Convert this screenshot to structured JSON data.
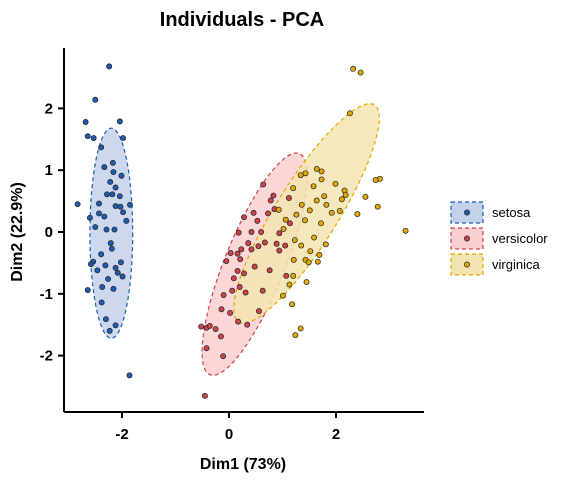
{
  "chart_data": {
    "type": "scatter",
    "title": "Individuals - PCA",
    "xlabel": "Dim1 (73%)",
    "ylabel": "Dim2 (22.9%)",
    "xlim": [
      -3.1,
      3.7
    ],
    "ylim": [
      -2.9,
      2.95
    ],
    "xticks": [
      -2,
      0,
      2
    ],
    "yticks": [
      -2,
      -1,
      0,
      1,
      2
    ],
    "grid": false,
    "legend_position": "right",
    "series": [
      {
        "name": "setosa",
        "color": "#1f5bb0",
        "fill": "#c3d1ea",
        "ellipse": {
          "center": [
            -2.2,
            -0.02
          ],
          "rx": 0.4,
          "ry": 1.7,
          "angle": 0
        },
        "points": [
          [
            -2.24,
            2.68
          ],
          [
            -2.5,
            2.14
          ],
          [
            -2.68,
            1.78
          ],
          [
            -2.64,
            1.55
          ],
          [
            -2.53,
            1.52
          ],
          [
            -2.39,
            1.37
          ],
          [
            -2.04,
            1.79
          ],
          [
            -2.33,
            1.05
          ],
          [
            -2.17,
            1.12
          ],
          [
            -2.16,
            0.97
          ],
          [
            -2.22,
            0.81
          ],
          [
            -1.98,
            1.52
          ],
          [
            -2.12,
            0.72
          ],
          [
            -2.28,
            0.61
          ],
          [
            -2.43,
            0.46
          ],
          [
            -2.43,
            0.3
          ],
          [
            -2.18,
            0.61
          ],
          [
            -2.01,
            0.91
          ],
          [
            -2.04,
            0.58
          ],
          [
            -2.12,
            0.42
          ],
          [
            -2.33,
            0.25
          ],
          [
            -2.5,
            0.08
          ],
          [
            -2.6,
            0.23
          ],
          [
            -2.83,
            0.45
          ],
          [
            -2.29,
            0.04
          ],
          [
            -2.03,
            0.41
          ],
          [
            -1.98,
            0.32
          ],
          [
            -1.85,
            0.44
          ],
          [
            -1.92,
            0.18
          ],
          [
            -2.14,
            0.04
          ],
          [
            -2.21,
            -0.18
          ],
          [
            -2.19,
            -0.27
          ],
          [
            -2.39,
            -0.36
          ],
          [
            -2.54,
            -0.48
          ],
          [
            -2.46,
            -0.62
          ],
          [
            -2.31,
            -0.54
          ],
          [
            -2.12,
            -0.58
          ],
          [
            -2.02,
            -0.49
          ],
          [
            -1.99,
            -0.72
          ],
          [
            -2.08,
            -0.66
          ],
          [
            -2.26,
            -0.76
          ],
          [
            -2.37,
            -0.89
          ],
          [
            -2.58,
            -0.52
          ],
          [
            -2.64,
            -0.94
          ],
          [
            -2.38,
            -1.14
          ],
          [
            -2.16,
            -0.92
          ],
          [
            -2.3,
            -1.41
          ],
          [
            -2.23,
            -1.6
          ],
          [
            -2.12,
            -1.51
          ],
          [
            -1.86,
            -2.32
          ]
        ]
      },
      {
        "name": "versicolor",
        "color": "#c9444b",
        "fill": "#f9cfcf",
        "ellipse": {
          "center": [
            0.48,
            -0.52
          ],
          "rx": 0.56,
          "ry": 1.93,
          "angle": 22
        },
        "points": [
          [
            0.83,
            0.59
          ],
          [
            0.85,
            0.37
          ],
          [
            0.64,
            0.77
          ],
          [
            0.78,
            0.51
          ],
          [
            0.46,
            0.31
          ],
          [
            0.28,
            0.24
          ],
          [
            0.53,
            0.18
          ],
          [
            0.6,
            0.0
          ],
          [
            0.36,
            -0.18
          ],
          [
            0.18,
            -0.01
          ],
          [
            0.21,
            -0.44
          ],
          [
            0.42,
            -0.28
          ],
          [
            0.67,
            -0.17
          ],
          [
            0.48,
            -0.56
          ],
          [
            0.28,
            -0.67
          ],
          [
            0.16,
            -0.35
          ],
          [
            0.16,
            -0.63
          ],
          [
            0.23,
            -0.28
          ],
          [
            0.03,
            -0.34
          ],
          [
            -0.05,
            -0.47
          ],
          [
            -0.1,
            -1.02
          ],
          [
            0.06,
            -0.95
          ],
          [
            0.2,
            -0.89
          ],
          [
            0.31,
            -0.98
          ],
          [
            0.02,
            -1.31
          ],
          [
            -0.42,
            -1.55
          ],
          [
            -0.25,
            -1.57
          ],
          [
            -0.52,
            -1.53
          ],
          [
            -0.42,
            -1.88
          ],
          [
            -0.36,
            -1.52
          ],
          [
            -0.15,
            -1.69
          ],
          [
            0.56,
            -1.28
          ],
          [
            0.63,
            -0.95
          ],
          [
            0.76,
            -0.62
          ],
          [
            0.94,
            -0.3
          ],
          [
            0.89,
            -0.19
          ],
          [
            1.12,
            0.55
          ],
          [
            0.94,
            -0.02
          ],
          [
            0.34,
            -1.5
          ],
          [
            1.14,
            0.14
          ],
          [
            0.09,
            -0.75
          ],
          [
            0.17,
            -1.45
          ],
          [
            -0.14,
            -1.25
          ],
          [
            0.42,
            0.0
          ],
          [
            1.05,
            -0.22
          ],
          [
            0.73,
            0.3
          ],
          [
            0.55,
            -0.23
          ],
          [
            1.07,
            -0.71
          ],
          [
            -0.11,
            -2.01
          ],
          [
            -0.45,
            -2.65
          ]
        ]
      },
      {
        "name": "virginica",
        "color": "#e0a800",
        "fill": "#f4e4b2",
        "ellipse": {
          "center": [
            1.45,
            0.3
          ],
          "rx": 0.58,
          "ry": 2.07,
          "angle": 32
        },
        "points": [
          [
            2.32,
            2.64
          ],
          [
            2.46,
            2.58
          ],
          [
            2.26,
            1.92
          ],
          [
            1.64,
            1.02
          ],
          [
            1.73,
            0.85
          ],
          [
            1.99,
            0.78
          ],
          [
            2.16,
            0.67
          ],
          [
            2.55,
            0.57
          ],
          [
            2.82,
            0.86
          ],
          [
            2.74,
            0.84
          ],
          [
            2.78,
            0.41
          ],
          [
            3.3,
            0.02
          ],
          [
            2.18,
            0.6
          ],
          [
            2.11,
            0.53
          ],
          [
            2.07,
            0.34
          ],
          [
            2.4,
            0.29
          ],
          [
            1.78,
            0.58
          ],
          [
            1.82,
            0.44
          ],
          [
            1.64,
            0.51
          ],
          [
            1.58,
            0.74
          ],
          [
            1.43,
            0.95
          ],
          [
            1.34,
            0.92
          ],
          [
            1.2,
            0.71
          ],
          [
            1.36,
            0.44
          ],
          [
            1.51,
            0.35
          ],
          [
            1.42,
            0.19
          ],
          [
            1.26,
            0.28
          ],
          [
            1.59,
            -0.09
          ],
          [
            1.81,
            -0.2
          ],
          [
            1.52,
            -0.31
          ],
          [
            1.02,
            0.05
          ],
          [
            1.35,
            -0.22
          ],
          [
            1.43,
            -0.45
          ],
          [
            1.21,
            -0.45
          ],
          [
            1.2,
            -0.71
          ],
          [
            1.13,
            -0.85
          ],
          [
            1.01,
            -1.03
          ],
          [
            1.45,
            -0.81
          ],
          [
            1.69,
            -0.37
          ],
          [
            1.66,
            -0.48
          ],
          [
            1.49,
            -0.49
          ],
          [
            1.23,
            -0.13
          ],
          [
            1.72,
            0.14
          ],
          [
            1.92,
            0.31
          ],
          [
            1.73,
            0.98
          ],
          [
            1.18,
            -1.17
          ],
          [
            1.34,
            -1.56
          ],
          [
            1.24,
            -1.67
          ],
          [
            1.06,
            0.2
          ],
          [
            0.93,
            0.36
          ]
        ]
      }
    ]
  }
}
